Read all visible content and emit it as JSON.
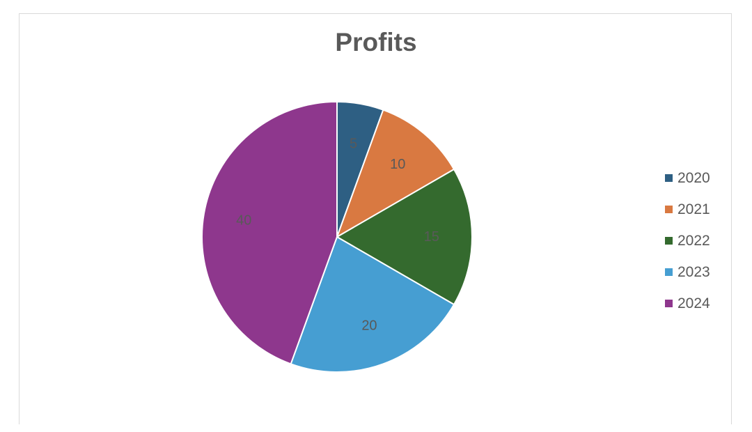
{
  "chart_data": {
    "type": "pie",
    "title": "Profits",
    "categories": [
      "2020",
      "2021",
      "2022",
      "2023",
      "2024"
    ],
    "values": [
      5,
      10,
      15,
      20,
      40
    ],
    "colors": [
      "#2e5f83",
      "#d97941",
      "#346a2e",
      "#469ed2",
      "#8e378d"
    ],
    "data_labels": [
      "5",
      "10",
      "15",
      "20",
      "40"
    ],
    "legend_position": "right"
  }
}
